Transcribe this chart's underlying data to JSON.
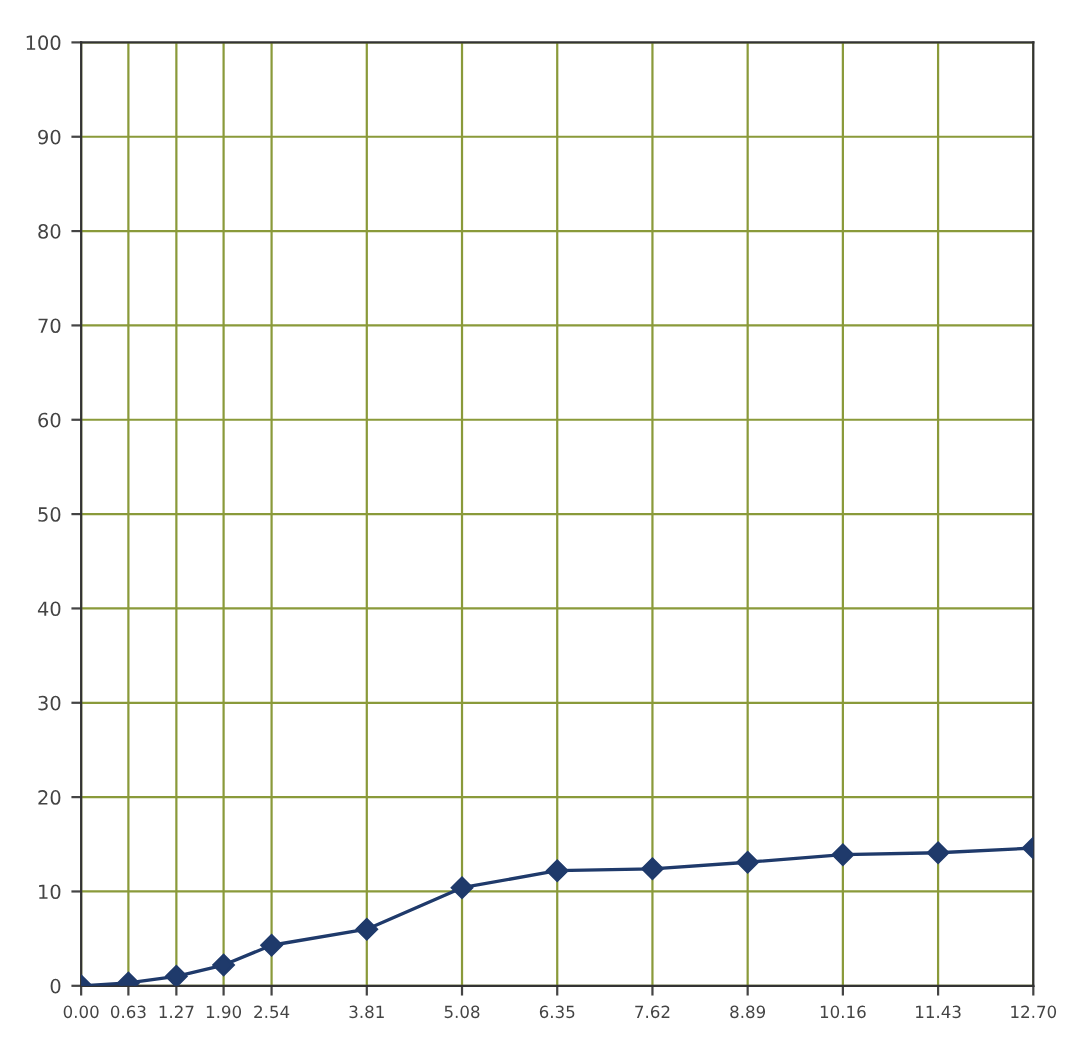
{
  "chart_data": {
    "type": "line",
    "x": [
      0.0,
      0.63,
      1.27,
      1.9,
      2.54,
      3.81,
      5.08,
      6.35,
      7.62,
      8.89,
      10.16,
      11.43,
      12.7
    ],
    "series": [
      {
        "color": "#1f3a6b",
        "values": [
          0,
          0.3,
          1.0,
          2.2,
          4.3,
          6.0,
          10.4,
          12.2,
          12.4,
          13.1,
          13.9,
          14.1,
          14.6
        ]
      }
    ],
    "xlim": [
      0,
      12.7
    ],
    "xticks": [
      {
        "value": 0.0,
        "label": "0.00"
      },
      {
        "value": 0.63,
        "label": "0.63"
      },
      {
        "value": 1.27,
        "label": "1.27"
      },
      {
        "value": 1.9,
        "label": "1.90"
      },
      {
        "value": 2.54,
        "label": "2.54"
      },
      {
        "value": 3.81,
        "label": "3.81"
      },
      {
        "value": 5.08,
        "label": "5.08"
      },
      {
        "value": 6.35,
        "label": "6.35"
      },
      {
        "value": 7.62,
        "label": "7.62"
      },
      {
        "value": 8.89,
        "label": "8.89"
      },
      {
        "value": 10.16,
        "label": "10.16"
      },
      {
        "value": 11.43,
        "label": "11.43"
      },
      {
        "value": 12.7,
        "label": "12.70"
      }
    ],
    "ylim": [
      0,
      100
    ],
    "yticks": [
      0,
      10,
      20,
      30,
      40,
      50,
      60,
      70,
      80,
      90,
      100
    ],
    "grid": true,
    "marker": "diamond",
    "line_style": "solid"
  }
}
